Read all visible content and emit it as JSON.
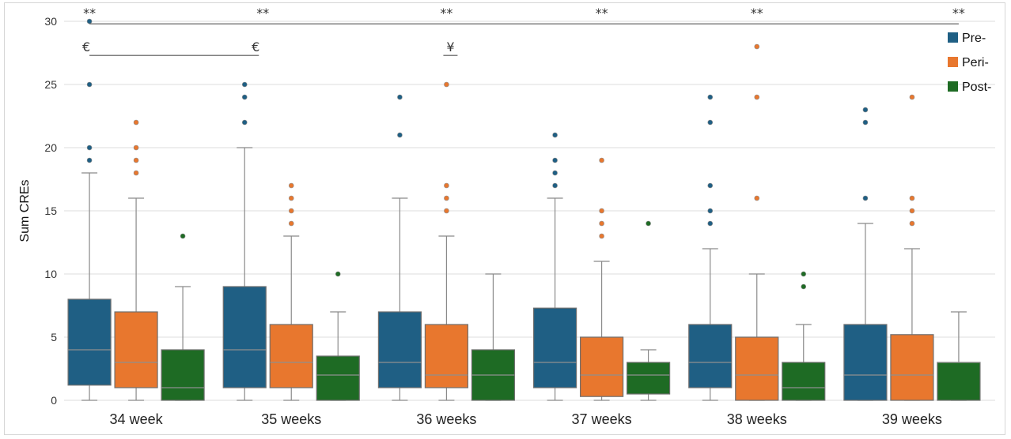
{
  "chart_data": {
    "type": "box",
    "ylabel": "Sum CREs",
    "xlabel": "",
    "ylim": [
      0,
      30
    ],
    "yticks": [
      0,
      5,
      10,
      15,
      20,
      25,
      30
    ],
    "grid": true,
    "legend_position": "top-right",
    "categories": [
      "34 week",
      "35 weeks",
      "36 weeks",
      "37 weeks",
      "38 weeks",
      "39 weeks"
    ],
    "series": [
      {
        "name": "Pre-",
        "color": "#1f5f84",
        "boxes": [
          {
            "min": 0,
            "q1": 1.2,
            "median": 4,
            "q3": 8,
            "max": 18,
            "outliers": [
              19,
              20,
              25,
              30
            ]
          },
          {
            "min": 0,
            "q1": 1,
            "median": 4,
            "q3": 9,
            "max": 20,
            "outliers": [
              22,
              24,
              25
            ]
          },
          {
            "min": 0,
            "q1": 1,
            "median": 3,
            "q3": 7,
            "max": 16,
            "outliers": [
              21,
              24
            ]
          },
          {
            "min": 0,
            "q1": 1,
            "median": 3,
            "q3": 7.3,
            "max": 16,
            "outliers": [
              17,
              18,
              19,
              21
            ]
          },
          {
            "min": 0,
            "q1": 1,
            "median": 3,
            "q3": 6,
            "max": 12,
            "outliers": [
              14,
              15,
              17,
              22,
              24
            ]
          },
          {
            "min": 0,
            "q1": 0,
            "median": 2,
            "q3": 6,
            "max": 14,
            "outliers": [
              16,
              22,
              23
            ]
          }
        ]
      },
      {
        "name": "Peri-",
        "color": "#e8772e",
        "boxes": [
          {
            "min": 0,
            "q1": 1,
            "median": 3,
            "q3": 7,
            "max": 16,
            "outliers": [
              18,
              19,
              20,
              22
            ]
          },
          {
            "min": 0,
            "q1": 1,
            "median": 3,
            "q3": 6,
            "max": 13,
            "outliers": [
              14,
              15,
              16,
              17
            ]
          },
          {
            "min": 0,
            "q1": 1,
            "median": 2,
            "q3": 6,
            "max": 13,
            "outliers": [
              15,
              16,
              17,
              25
            ]
          },
          {
            "min": 0,
            "q1": 0.3,
            "median": 2,
            "q3": 5,
            "max": 11,
            "outliers": [
              13,
              14,
              15,
              19
            ]
          },
          {
            "min": 0,
            "q1": 0,
            "median": 2,
            "q3": 5,
            "max": 10,
            "outliers": [
              16,
              24,
              28
            ]
          },
          {
            "min": 0,
            "q1": 0,
            "median": 2,
            "q3": 5.2,
            "max": 12,
            "outliers": [
              14,
              15,
              16,
              24
            ]
          }
        ]
      },
      {
        "name": "Post-",
        "color": "#1e6b24",
        "boxes": [
          {
            "min": 0,
            "q1": 0,
            "median": 1,
            "q3": 4,
            "max": 9,
            "outliers": [
              13
            ]
          },
          {
            "min": 0,
            "q1": 0,
            "median": 2,
            "q3": 3.5,
            "max": 7,
            "outliers": [
              10
            ]
          },
          {
            "min": 0,
            "q1": 0,
            "median": 2,
            "q3": 4,
            "max": 10,
            "outliers": []
          },
          {
            "min": 0,
            "q1": 0.5,
            "median": 2,
            "q3": 3,
            "max": 4,
            "outliers": [
              14
            ]
          },
          {
            "min": 0,
            "q1": 0,
            "median": 1,
            "q3": 3,
            "max": 6,
            "outliers": [
              9,
              10
            ]
          },
          {
            "min": 0,
            "q1": 0,
            "median": 3,
            "q3": 3,
            "max": 7,
            "outliers": []
          }
        ]
      }
    ],
    "significance": {
      "top_line": {
        "from_category": 0,
        "to_category": 5,
        "y": 29.8
      },
      "top_marks": [
        {
          "category": 0,
          "label": "**"
        },
        {
          "category": 1,
          "label": "**"
        },
        {
          "category": 2,
          "label": "**"
        },
        {
          "category": 3,
          "label": "**"
        },
        {
          "category": 4,
          "label": "**"
        },
        {
          "category": 5,
          "label": "**"
        }
      ],
      "euro_bracket": {
        "from_category": 0,
        "to_category": 1,
        "y": 27.3,
        "labels": [
          "€",
          "€"
        ]
      },
      "yen_bracket": {
        "category": 2,
        "y": 27.3,
        "label": "¥"
      }
    }
  }
}
